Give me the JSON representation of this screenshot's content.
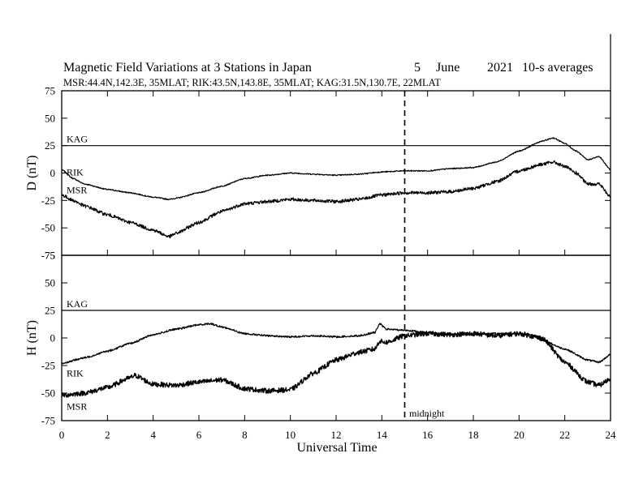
{
  "chart_data": {
    "type": "line",
    "title": {
      "main": "Magnetic Field Variations at 3 Stations in Japan",
      "day": "5",
      "month": "June",
      "year": "2021",
      "resolution": "10-s averages"
    },
    "subtitle": "MSR:44.4N,142.3E, 35MLAT;  RIK:43.5N,143.8E, 35MLAT;  KAG:31.5N,130.7E, 22MLAT",
    "xlabel": "Universal Time",
    "xlim": [
      0,
      24
    ],
    "xticks": [
      "0",
      "2",
      "4",
      "6",
      "8",
      "10",
      "12",
      "14",
      "16",
      "18",
      "20",
      "22",
      "24"
    ],
    "yticks": [
      "75",
      "50",
      "25",
      "0",
      "-25",
      "-50",
      "-75"
    ],
    "midnight_label": "midnight",
    "midnight_x": 15,
    "panels": [
      {
        "ylabel": "D (nT)",
        "ylim": [
          -75,
          75
        ],
        "series": [
          {
            "name": "KAG",
            "noise": 0,
            "x": [
              0,
              24
            ],
            "y": [
              25,
              25
            ]
          },
          {
            "name": "RIK",
            "noise": 0.5,
            "x": [
              0,
              0.5,
              1,
              2,
              3,
              4,
              4.7,
              5,
              6,
              7,
              8,
              9,
              10,
              11,
              12,
              13,
              14,
              15,
              16,
              17,
              18,
              19,
              20,
              21,
              21.5,
              22,
              22.5,
              23,
              23.5,
              24
            ],
            "y": [
              3,
              -5,
              -10,
              -15,
              -18,
              -22,
              -24,
              -23,
              -18,
              -12,
              -5,
              -2,
              0,
              -1,
              -2,
              -1,
              1,
              2,
              2,
              4,
              5,
              10,
              20,
              29,
              32,
              27,
              20,
              12,
              15,
              3
            ]
          },
          {
            "name": "MSR",
            "noise": 1.5,
            "x": [
              0,
              0.5,
              1,
              2,
              3,
              4,
              4.7,
              5,
              6,
              7,
              8,
              9,
              10,
              11,
              12,
              13,
              14,
              15,
              16,
              17,
              18,
              19,
              20,
              21,
              21.5,
              22,
              22.5,
              23,
              23.5,
              24
            ],
            "y": [
              -20,
              -25,
              -30,
              -38,
              -45,
              -52,
              -58,
              -55,
              -45,
              -35,
              -28,
              -26,
              -24,
              -25,
              -26,
              -24,
              -20,
              -18,
              -18,
              -17,
              -14,
              -8,
              2,
              8,
              10,
              6,
              0,
              -10,
              -10,
              -22
            ]
          }
        ]
      },
      {
        "ylabel": "H (nT)",
        "ylim": [
          -75,
          75
        ],
        "series": [
          {
            "name": "KAG",
            "noise": 0,
            "x": [
              0,
              24
            ],
            "y": [
              25,
              25
            ]
          },
          {
            "name": "RIK",
            "noise": 0.8,
            "x": [
              0,
              1,
              2,
              3,
              4,
              5,
              6,
              6.5,
              7,
              8,
              9,
              10,
              11,
              12,
              13,
              13.7,
              13.9,
              14.2,
              15,
              16,
              17,
              18,
              19,
              20,
              20.5,
              21,
              22,
              23,
              23.5,
              24
            ],
            "y": [
              -23,
              -18,
              -12,
              -5,
              3,
              8,
              12,
              13,
              10,
              4,
              2,
              1,
              2,
              1,
              2,
              5,
              13,
              8,
              7,
              5,
              3,
              3,
              4,
              4,
              3,
              -2,
              -10,
              -20,
              -22,
              -15
            ]
          },
          {
            "name": "MSR",
            "noise": 2.2,
            "x": [
              0,
              1,
              2,
              3,
              3.2,
              4,
              5,
              6,
              7,
              8,
              9,
              10,
              11,
              12,
              13,
              13.7,
              13.9,
              14.2,
              15,
              16,
              17,
              18,
              19,
              20,
              21,
              22,
              23,
              23.5,
              24
            ],
            "y": [
              -52,
              -50,
              -45,
              -36,
              -34,
              -42,
              -43,
              -40,
              -38,
              -46,
              -48,
              -47,
              -32,
              -20,
              -13,
              -10,
              -3,
              -4,
              2,
              4,
              3,
              4,
              2,
              4,
              0,
              -22,
              -40,
              -43,
              -37
            ]
          }
        ]
      }
    ]
  }
}
